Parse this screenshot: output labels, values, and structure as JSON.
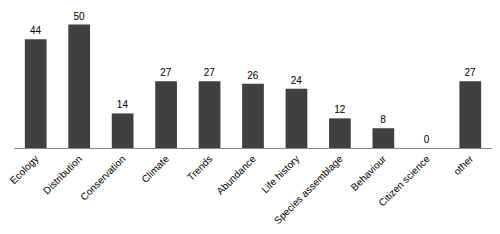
{
  "chart_data": {
    "type": "bar",
    "categories": [
      "Ecology",
      "Distribution",
      "Conservation",
      "Climate",
      "Trends",
      "Abundance",
      "Life history",
      "Species assemblage",
      "Behaviour",
      "Citizen science",
      "other"
    ],
    "values": [
      44,
      50,
      14,
      27,
      27,
      26,
      24,
      12,
      8,
      0,
      27
    ],
    "color": "#404040",
    "data_labels": true,
    "tick_labels": "x",
    "grid": false
  }
}
